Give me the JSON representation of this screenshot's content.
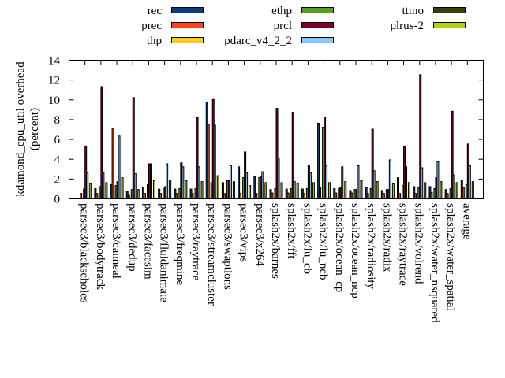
{
  "chart_data": {
    "type": "bar",
    "title": "",
    "xlabel": "",
    "ylabel": "kdamond_cpu_util overhead",
    "ylabel2": "(percent)",
    "ylim": [
      0,
      14
    ],
    "yticks": [
      "0",
      "2",
      "4",
      "6",
      "8",
      "10",
      "12",
      "14"
    ],
    "legend_position": "top",
    "categories": [
      "parsec3/blackscholes",
      "parsec3/bodytrack",
      "parsec3/canneal",
      "parsec3/dedup",
      "parsec3/facesim",
      "parsec3/fluidanimate",
      "parsec3/freqmine",
      "parsec3/raytrace",
      "parsec3/streamcluster",
      "parsec3/swaptions",
      "parsec3/vips",
      "parsec3/x264",
      "splash2x/barnes",
      "splash2x/fft",
      "splash2x/lu_cb",
      "splash2x/lu_ncb",
      "splash2x/ocean_cp",
      "splash2x/ocean_ncp",
      "splash2x/radiosity",
      "splash2x/radix",
      "splash2x/raytrace",
      "splash2x/volrend",
      "splash2x/water_nsquared",
      "splash2x/water_spatial",
      "average"
    ],
    "series": [
      {
        "name": "rec",
        "color": "#0a3d7e",
        "values": [
          0,
          1.0,
          1.4,
          0.7,
          1.1,
          0.95,
          0.95,
          0.95,
          9.7,
          1.6,
          3.2,
          2.2,
          0.9,
          0.95,
          0.95,
          7.6,
          1.0,
          0.8,
          1.1,
          0.8,
          2.1,
          1.2,
          1.2,
          0.9,
          1.8
        ]
      },
      {
        "name": "prec",
        "color": "#ff4516",
        "values": [
          0.5,
          0.5,
          7.1,
          0.4,
          0.5,
          0.5,
          0.5,
          0.5,
          7.5,
          0.5,
          0.5,
          0.5,
          0.55,
          0.55,
          0.5,
          1.1,
          0.55,
          0.55,
          0.5,
          0.5,
          0.5,
          0.5,
          0.6,
          0.5,
          1.1
        ]
      },
      {
        "name": "thp",
        "color": "#ffcc1a",
        "values": [
          0,
          0,
          0,
          0,
          0,
          0,
          0,
          0,
          0,
          0,
          0,
          0,
          0,
          0,
          0,
          0,
          0,
          0,
          0,
          0,
          0,
          0,
          0,
          0,
          0
        ]
      },
      {
        "name": "ethp",
        "color": "#55a11f",
        "values": [
          0.95,
          1.2,
          1.3,
          0.9,
          1.4,
          1.0,
          1.0,
          1.0,
          1.6,
          1.8,
          2.1,
          2.1,
          1.0,
          1.0,
          1.0,
          7.2,
          1.0,
          0.9,
          1.0,
          0.9,
          1.3,
          1.1,
          1.0,
          1.0,
          1.4
        ]
      },
      {
        "name": "prcl",
        "color": "#7d0026",
        "values": [
          5.3,
          11.3,
          1.7,
          10.2,
          3.5,
          1.2,
          3.6,
          8.2,
          10.0,
          1.8,
          4.7,
          2.2,
          9.1,
          8.7,
          3.3,
          8.2,
          1.1,
          0.9,
          7.0,
          0.9,
          5.3,
          12.5,
          2.1,
          8.8,
          5.5
        ]
      },
      {
        "name": "pdarc_v4_2_2",
        "color": "#86c8ff",
        "values": [
          2.6,
          2.6,
          6.3,
          2.5,
          3.5,
          3.5,
          3.2,
          3.2,
          7.4,
          3.3,
          2.6,
          2.7,
          4.1,
          1.7,
          2.6,
          3.3,
          3.2,
          3.3,
          2.8,
          3.9,
          3.2,
          3.1,
          3.7,
          2.4,
          3.3
        ]
      },
      {
        "name": "ttmo",
        "color": "#334205",
        "values": [
          0,
          0,
          0,
          0,
          0,
          0,
          0,
          0,
          0,
          0,
          0,
          0,
          0,
          0,
          0,
          0,
          0,
          0,
          0,
          0,
          0,
          0,
          0,
          0,
          0
        ]
      },
      {
        "name": "plrus-2",
        "color": "#b7d20a",
        "values": [
          1.5,
          1.6,
          2.1,
          0.9,
          1.8,
          1.8,
          1.8,
          1.7,
          2.3,
          1.7,
          1.3,
          1.6,
          1.6,
          1.5,
          1.6,
          1.6,
          1.7,
          1.8,
          1.7,
          1.5,
          1.6,
          1.6,
          1.7,
          1.6,
          1.7
        ]
      }
    ]
  }
}
